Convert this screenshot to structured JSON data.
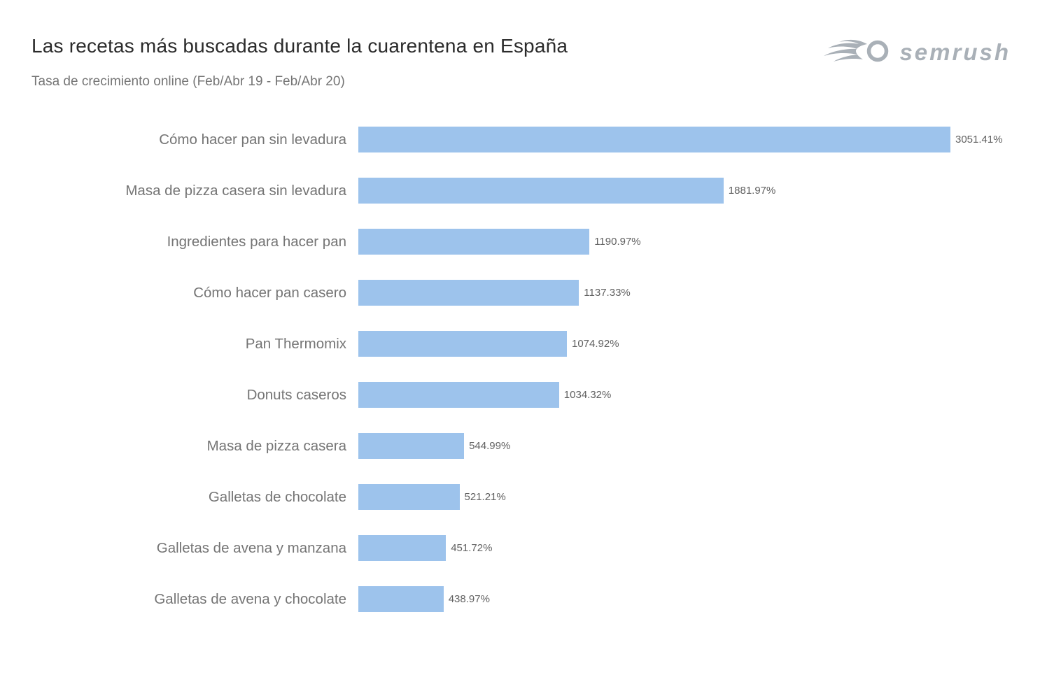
{
  "page": {
    "title": "Las recetas más buscadas durante la cuarentena en España",
    "subtitle": "Tasa de crecimiento online (Feb/Abr 19 - Feb/Abr 20)",
    "background_color": "#ffffff"
  },
  "logo": {
    "brand": "semrush",
    "icon": "semrush-flame-icon",
    "color": "#a9b0b7"
  },
  "chart_data": {
    "type": "bar",
    "orientation": "horizontal",
    "title": "Las recetas más buscadas durante la cuarentena en España",
    "subtitle": "Tasa de crecimiento online (Feb/Abr 19 - Feb/Abr 20)",
    "categories": [
      "Cómo hacer pan sin levadura",
      "Masa de pizza casera sin levadura",
      "Ingredientes para hacer pan",
      "Cómo hacer pan casero",
      "Pan Thermomix",
      "Donuts caseros",
      "Masa de pizza casera",
      "Galletas de chocolate",
      "Galletas de avena y manzana",
      "Galletas de avena y chocolate"
    ],
    "values": [
      3051.41,
      1881.97,
      1190.97,
      1137.33,
      1074.92,
      1034.32,
      544.99,
      521.21,
      451.72,
      438.97
    ],
    "value_labels": [
      "3051.41%",
      "1881.97%",
      "1190.97%",
      "1137.33%",
      "1074.92%",
      "1034.32%",
      "544.99%",
      "521.21%",
      "451.72%",
      "438.97%"
    ],
    "unit": "%",
    "xlim": [
      0,
      3051.41
    ],
    "grid": false,
    "legend": false,
    "axis_labels_visible": false,
    "bar_color": "#9dc3ec",
    "label_color": "#757575",
    "value_color": "#616161",
    "title_color": "#2b2b2b",
    "subtitle_color": "#757575"
  }
}
